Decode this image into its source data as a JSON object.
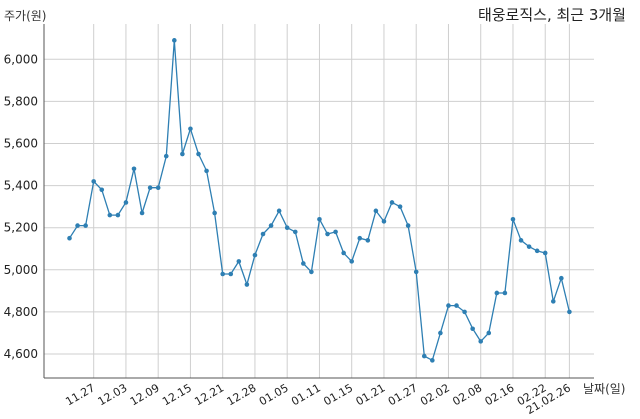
{
  "chart_data": {
    "type": "line",
    "title": "태웅로직스, 최근 3개월",
    "xlabel": "날짜(일)",
    "ylabel": "주가(원)",
    "ylim": [
      4500,
      6200
    ],
    "yticks": [
      4600,
      4800,
      5000,
      5200,
      5400,
      5600,
      5800,
      6000
    ],
    "ytick_labels": [
      "4,600",
      "4,800",
      "5,000",
      "5,200",
      "5,400",
      "5,600",
      "5,800",
      "6,000"
    ],
    "xtick_labels": [
      "11.27",
      "12.03",
      "12.09",
      "12.15",
      "12.21",
      "12.28",
      "01.05",
      "01.11",
      "01.15",
      "01.21",
      "01.27",
      "02.02",
      "02.08",
      "02.16",
      "02.22",
      "21.02.26"
    ],
    "xtick_index": [
      3,
      7,
      11,
      15,
      19,
      23,
      27,
      31,
      35,
      39,
      43,
      47,
      51,
      55,
      59,
      62
    ],
    "grid": true,
    "line_color": "#2e7fb3",
    "values": [
      5150,
      5210,
      5210,
      5420,
      5380,
      5260,
      5260,
      5320,
      5480,
      5270,
      5390,
      5390,
      5540,
      6090,
      5550,
      5670,
      5550,
      5470,
      5270,
      4980,
      4980,
      5040,
      4930,
      5070,
      5170,
      5210,
      5280,
      5200,
      5180,
      5030,
      4990,
      5240,
      5170,
      5180,
      5080,
      5040,
      5150,
      5140,
      5280,
      5230,
      5320,
      5300,
      5210,
      4990,
      4590,
      4570,
      4700,
      4830,
      4830,
      4800,
      4720,
      4660,
      4700,
      4890,
      4890,
      5240,
      5140,
      5110,
      5090,
      5080,
      4850,
      4960,
      4800
    ]
  }
}
